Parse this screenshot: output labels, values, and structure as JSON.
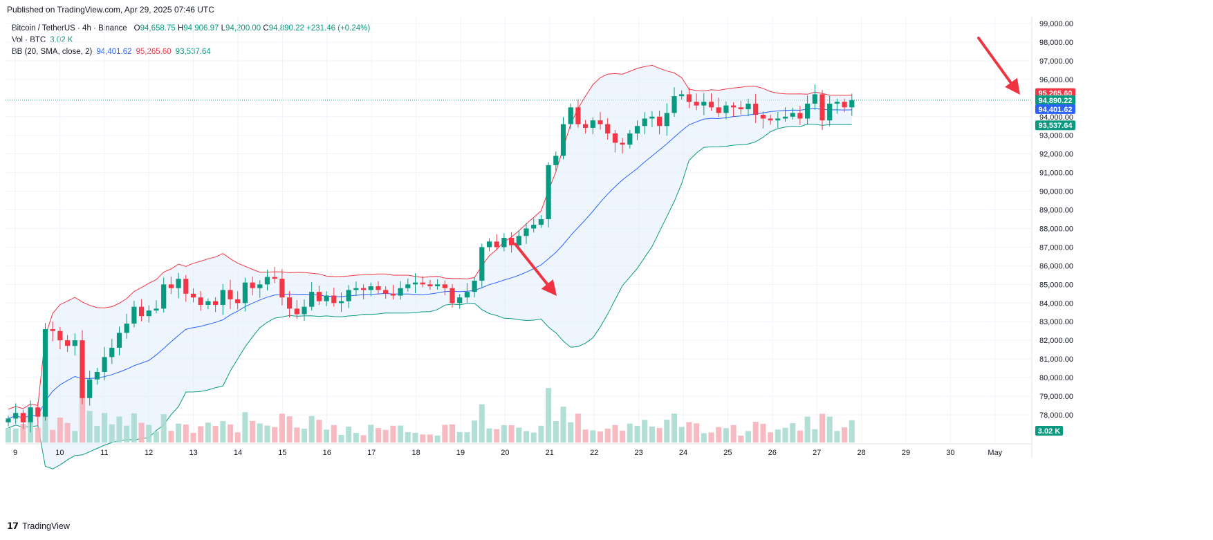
{
  "published": "Published on TradingView.com, Apr 29, 2025 07:46 UTC",
  "legend": {
    "symbol": "Bitcoin / TetherUS · 4h · Binance",
    "o_label": "O",
    "o_value": "94,658.75",
    "h_label": "H",
    "h_value": "94,906.97",
    "l_label": "L",
    "l_value": "94,200.00",
    "c_label": "C",
    "c_value": "94,890.22",
    "change": "+231.46 (+0.24%)",
    "vol_label": "Vol · BTC",
    "vol_value": "3.02 K",
    "bb_label": "BB (20, SMA, close, 2)",
    "bb_basis": "94,401.62",
    "bb_upper": "95,265.60",
    "bb_lower": "93,537.64"
  },
  "footer": {
    "brand": "TradingView"
  },
  "colors": {
    "up": "#089981",
    "down": "#f23645",
    "basis": "#2962ff",
    "upper": "#f23645",
    "lower": "#089981",
    "band_fill": "#e3eefa",
    "arrow": "#ef3340"
  },
  "chart_data": {
    "type": "candlestick",
    "interval": "4h",
    "ylim": [
      77000,
      99000
    ],
    "y_ticks": [
      "99,000.00",
      "98,000.00",
      "97,000.00",
      "96,000.00",
      "95,000.00",
      "94,000.00",
      "93,000.00",
      "92,000.00",
      "91,000.00",
      "90,000.00",
      "89,000.00",
      "88,000.00",
      "87,000.00",
      "86,000.00",
      "85,000.00",
      "84,000.00",
      "83,000.00",
      "82,000.00",
      "81,000.00",
      "80,000.00",
      "79,000.00",
      "78,000.00"
    ],
    "x_labels": [
      "9",
      "10",
      "11",
      "12",
      "13",
      "14",
      "15",
      "16",
      "17",
      "18",
      "19",
      "20",
      "21",
      "22",
      "23",
      "24",
      "25",
      "26",
      "27",
      "28",
      "29",
      "30",
      "May"
    ],
    "price_tags": [
      {
        "label": "95,265.60",
        "value": 95265.6,
        "color": "#f23645"
      },
      {
        "label": "94,890.22",
        "value": 94890.22,
        "color": "#089981"
      },
      {
        "label": "94,401.62",
        "value": 94401.62,
        "color": "#2962ff"
      },
      {
        "label": "93,537.64",
        "value": 93537.64,
        "color": "#089981"
      }
    ],
    "volume_tag": "3.02 K",
    "last_price": 94890.22,
    "closes": [
      77800,
      78100,
      77600,
      78400,
      77900,
      82600,
      82500,
      82000,
      81700,
      82000,
      78900,
      79900,
      80300,
      81100,
      81600,
      82400,
      82900,
      83800,
      83300,
      83600,
      83700,
      85000,
      84800,
      85300,
      84500,
      84300,
      83900,
      84100,
      83900,
      84700,
      84200,
      84000,
      85100,
      84800,
      85000,
      85400,
      85300,
      84300,
      83700,
      83400,
      83800,
      84600,
      84100,
      84400,
      84000,
      84100,
      84700,
      84800,
      84700,
      84900,
      84700,
      84500,
      84400,
      84800,
      85000,
      85100,
      85000,
      84900,
      85000,
      84800,
      84000,
      84300,
      84600,
      85200,
      87000,
      87300,
      87000,
      87500,
      87100,
      87600,
      88000,
      88200,
      88500,
      91400,
      91900,
      93600,
      94500,
      93600,
      93400,
      93800,
      93600,
      93100,
      92600,
      92500,
      93100,
      93500,
      93900,
      94000,
      93500,
      94200,
      95100,
      95200,
      94800,
      94600,
      94800,
      94500,
      94200,
      94600,
      94500,
      94400,
      94700,
      94100,
      93900,
      93800,
      93900,
      94000,
      94200,
      93900,
      94700,
      95200,
      93800,
      94700,
      94800,
      94500,
      94890
    ]
  }
}
